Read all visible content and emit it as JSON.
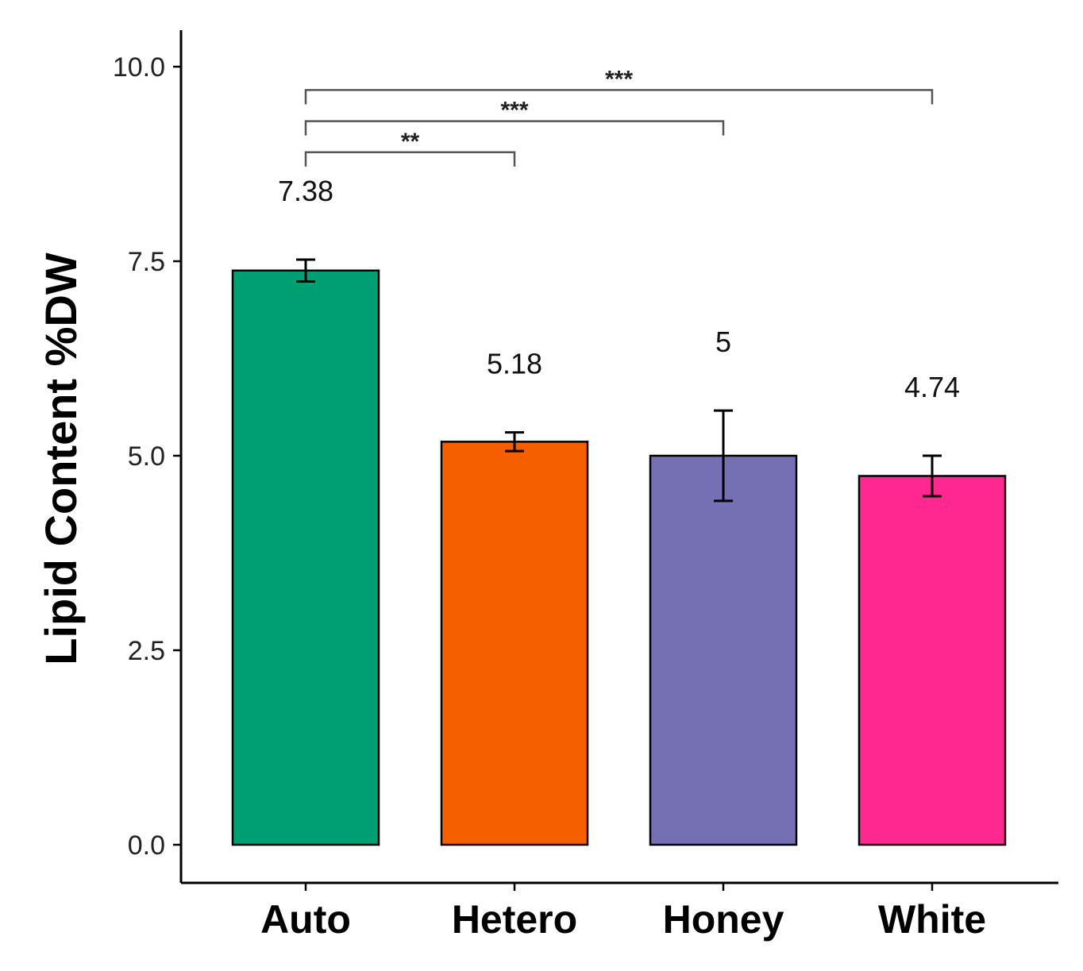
{
  "chart_data": {
    "type": "bar",
    "title": "",
    "xlabel": "",
    "ylabel": "Lipid Content %DW",
    "ylim": [
      -0.45,
      10.5
    ],
    "yticks": [
      0.0,
      2.5,
      5.0,
      7.5,
      10.0
    ],
    "ytick_labels": [
      "0.0",
      "2.5",
      "5.0",
      "7.5",
      "10.0"
    ],
    "categories": [
      "Auto",
      "Hetero",
      "Honey",
      "White"
    ],
    "values": [
      7.38,
      5.18,
      5.0,
      4.74
    ],
    "errors": [
      0.14,
      0.12,
      0.58,
      0.26
    ],
    "data_labels": [
      "7.38",
      "5.18",
      "5",
      "4.74"
    ],
    "colors": [
      "#009E73",
      "#F55F00",
      "#7570B3",
      "#FF2890"
    ],
    "grid": false,
    "significance": [
      {
        "from": "Auto",
        "to": "Hetero",
        "label": "**",
        "y": 8.9
      },
      {
        "from": "Auto",
        "to": "Honey",
        "label": "***",
        "y": 9.3
      },
      {
        "from": "Auto",
        "to": "White",
        "label": "***",
        "y": 9.7
      }
    ]
  }
}
